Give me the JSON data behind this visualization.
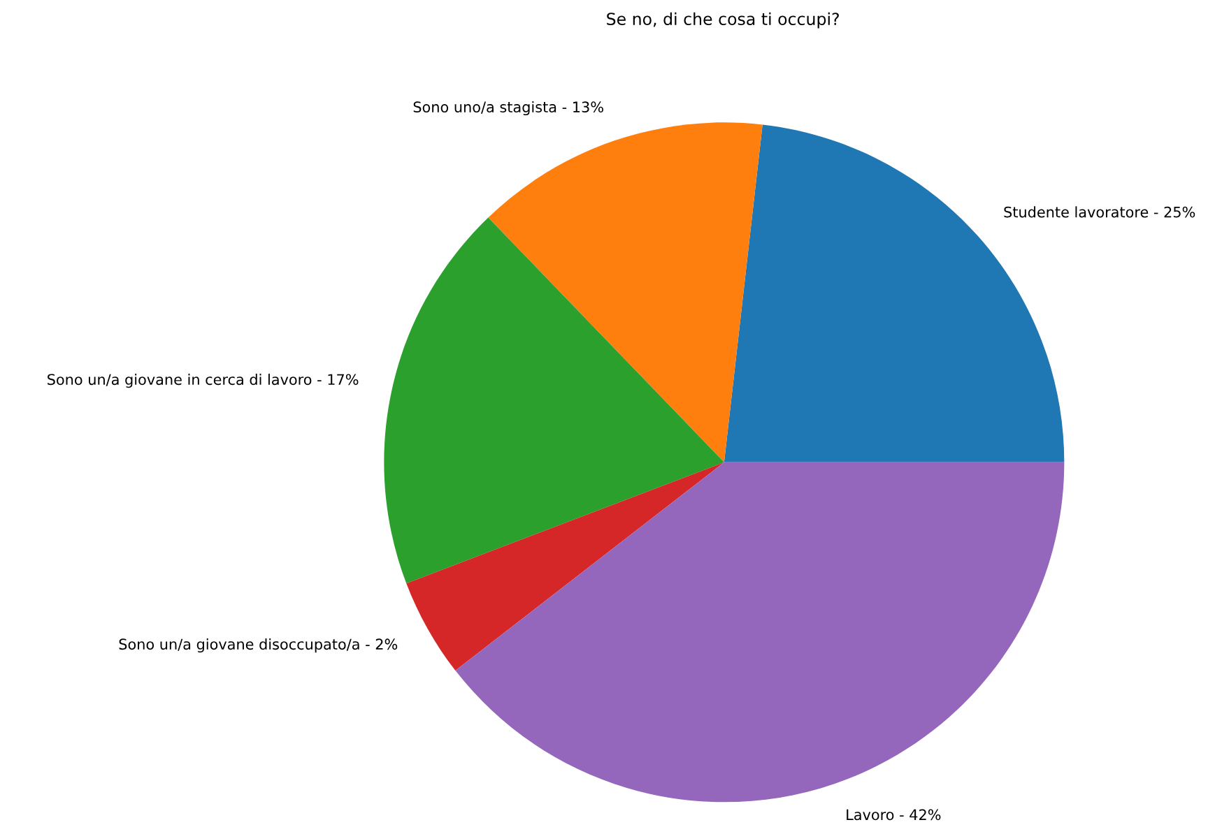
{
  "chart_data": {
    "type": "pie",
    "title": "Se no, di che cosa ti occupi?",
    "categories": [
      "Studente lavoratore - 25%",
      "Sono uno/a stagista - 13%",
      "Sono un/a giovane in cerca di lavoro - 17%",
      "Sono un/a giovane disoccupato/a - 2%",
      "Lavoro - 42%"
    ],
    "values": [
      23.2,
      14.0,
      18.6,
      4.7,
      39.5
    ],
    "colors": [
      "#1f77b4",
      "#ff7f0e",
      "#2ca02c",
      "#d62728",
      "#9467bd"
    ]
  }
}
